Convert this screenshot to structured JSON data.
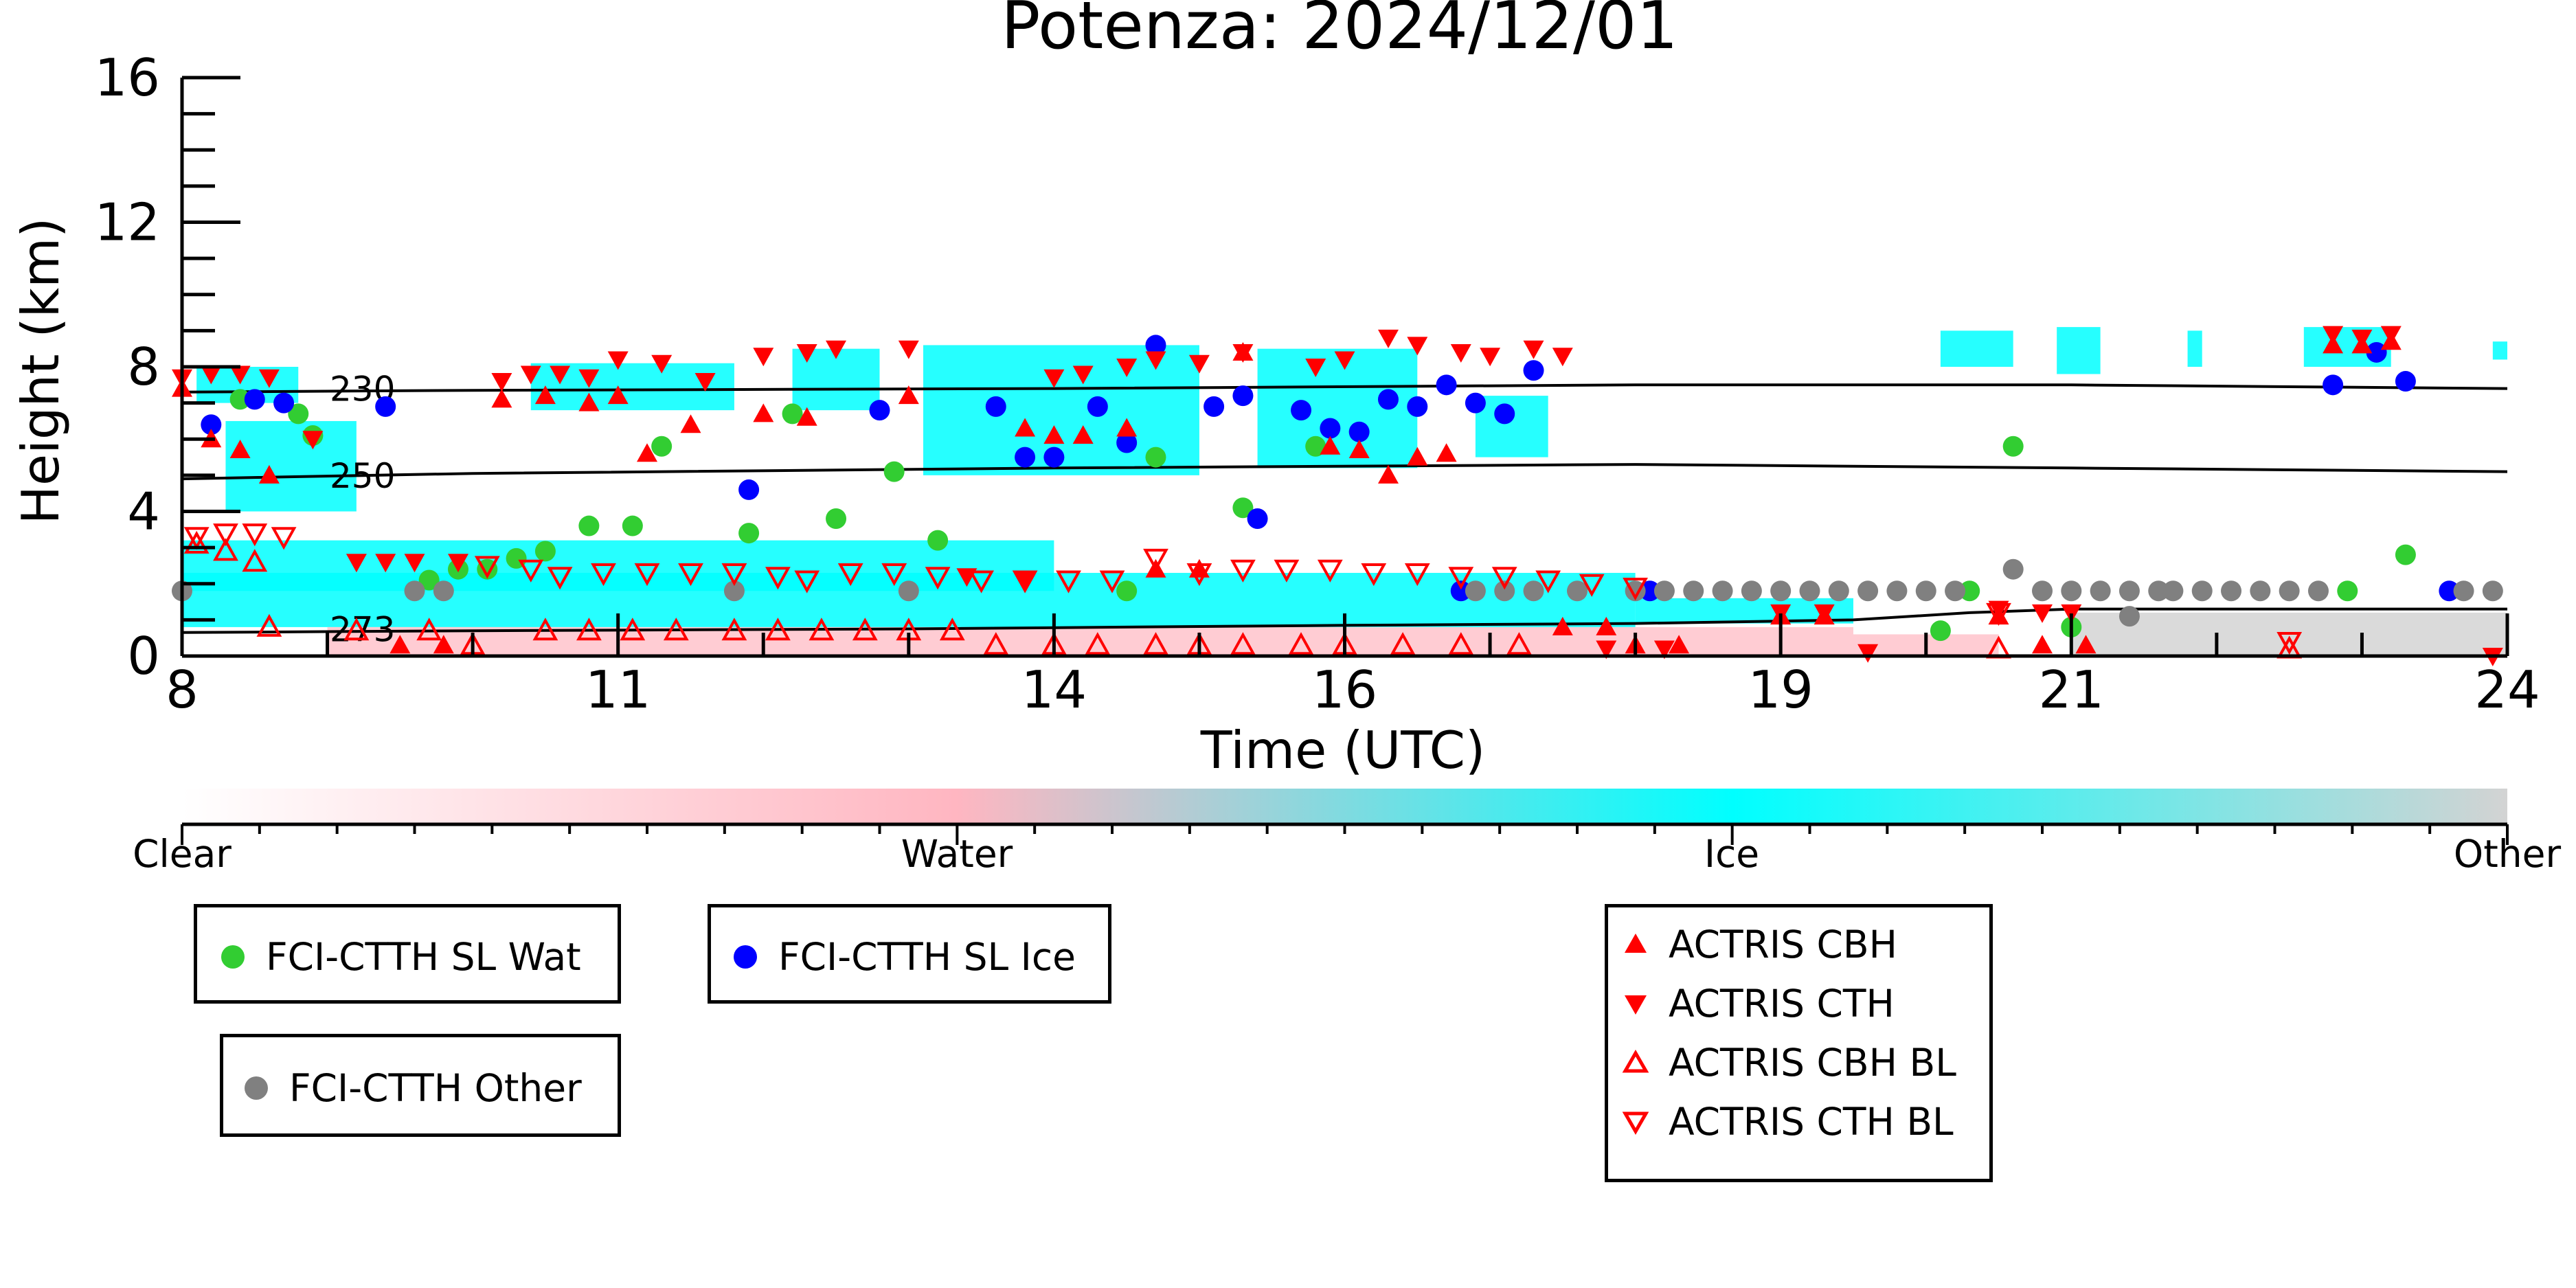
{
  "chart_data": {
    "type": "scatter",
    "title": "Potenza: 2024/12/01",
    "xlabel": "Time (UTC)",
    "ylabel": "Height (km)",
    "xlim": [
      8,
      24
    ],
    "ylim": [
      0,
      16
    ],
    "x_ticks": [
      8,
      11,
      14,
      16,
      19,
      21,
      24
    ],
    "y_ticks": [
      0,
      4,
      8,
      12,
      16
    ],
    "isotherms": [
      {
        "label": "230",
        "points": [
          [
            8,
            7.3
          ],
          [
            10,
            7.35
          ],
          [
            14,
            7.4
          ],
          [
            18,
            7.5
          ],
          [
            21,
            7.5
          ],
          [
            24,
            7.4
          ]
        ]
      },
      {
        "label": "250",
        "points": [
          [
            8,
            4.9
          ],
          [
            10,
            5.05
          ],
          [
            14,
            5.2
          ],
          [
            18,
            5.3
          ],
          [
            21,
            5.2
          ],
          [
            24,
            5.1
          ]
        ]
      },
      {
        "label": "273",
        "points": [
          [
            8,
            0.65
          ],
          [
            10,
            0.7
          ],
          [
            13,
            0.75
          ],
          [
            16,
            0.85
          ],
          [
            18,
            0.9
          ],
          [
            19.5,
            1.0
          ],
          [
            20.3,
            1.2
          ],
          [
            21,
            1.3
          ],
          [
            24,
            1.3
          ]
        ]
      }
    ],
    "background_classes": {
      "ice": [
        [
          8.1,
          8.8,
          7.0,
          8.0
        ],
        [
          8.3,
          9.2,
          4.0,
          6.5
        ],
        [
          10.4,
          11.8,
          6.8,
          8.1
        ],
        [
          12.2,
          12.8,
          6.8,
          8.5
        ],
        [
          13.1,
          15.0,
          5.0,
          8.6
        ],
        [
          15.4,
          16.5,
          5.2,
          8.5
        ],
        [
          16.9,
          17.4,
          5.5,
          7.2
        ],
        [
          20.1,
          20.6,
          8.0,
          9.0
        ],
        [
          20.9,
          21.2,
          7.8,
          9.1
        ],
        [
          21.8,
          21.9,
          8.0,
          9.0
        ],
        [
          22.6,
          23.2,
          8.0,
          9.1
        ],
        [
          23.9,
          24.0,
          8.2,
          8.7
        ],
        [
          8.0,
          14.0,
          1.8,
          3.2
        ],
        [
          8.0,
          18.0,
          0.8,
          2.3
        ],
        [
          18.0,
          19.5,
          0.9,
          1.6
        ]
      ],
      "water": [
        [
          9.0,
          19.5,
          0.0,
          0.8
        ],
        [
          19.5,
          20.5,
          0.0,
          0.6
        ]
      ],
      "other": [
        [
          21.0,
          24.0,
          0.0,
          1.2
        ]
      ]
    },
    "colorbar": {
      "labels": [
        "Clear",
        "Water",
        "Ice",
        "Other"
      ],
      "colors": [
        "#ffffff",
        "#ffb6c1",
        "#00ffff",
        "#d3d3d3"
      ]
    },
    "series": [
      {
        "name": "FCI-CTTH SL Wat",
        "marker": "circle",
        "color": "#32cd32",
        "points": [
          [
            8.4,
            7.1
          ],
          [
            8.8,
            6.7
          ],
          [
            8.9,
            6.1
          ],
          [
            9.7,
            2.1
          ],
          [
            9.9,
            2.4
          ],
          [
            10.1,
            2.4
          ],
          [
            10.3,
            2.7
          ],
          [
            10.5,
            2.9
          ],
          [
            10.8,
            3.6
          ],
          [
            11.1,
            3.6
          ],
          [
            11.3,
            5.8
          ],
          [
            11.9,
            3.4
          ],
          [
            12.2,
            6.7
          ],
          [
            12.5,
            3.8
          ],
          [
            12.9,
            5.1
          ],
          [
            13.2,
            3.2
          ],
          [
            14.5,
            1.8
          ],
          [
            14.7,
            5.5
          ],
          [
            15.3,
            4.1
          ],
          [
            15.8,
            5.8
          ],
          [
            20.1,
            0.7
          ],
          [
            20.3,
            1.8
          ],
          [
            20.6,
            5.8
          ],
          [
            21.0,
            0.8
          ],
          [
            22.9,
            1.8
          ],
          [
            23.3,
            2.8
          ]
        ]
      },
      {
        "name": "FCI-CTTH SL Ice",
        "marker": "circle",
        "color": "#0000ff",
        "points": [
          [
            8.2,
            6.4
          ],
          [
            8.5,
            7.1
          ],
          [
            8.7,
            7.0
          ],
          [
            9.4,
            6.9
          ],
          [
            11.9,
            4.6
          ],
          [
            12.8,
            6.8
          ],
          [
            13.6,
            6.9
          ],
          [
            13.8,
            5.5
          ],
          [
            14.0,
            5.5
          ],
          [
            14.3,
            6.9
          ],
          [
            14.5,
            5.9
          ],
          [
            14.7,
            8.6
          ],
          [
            15.1,
            6.9
          ],
          [
            15.3,
            7.2
          ],
          [
            15.4,
            3.8
          ],
          [
            15.7,
            6.8
          ],
          [
            15.9,
            6.3
          ],
          [
            16.1,
            6.2
          ],
          [
            16.3,
            7.1
          ],
          [
            16.5,
            6.9
          ],
          [
            16.7,
            7.5
          ],
          [
            16.9,
            7.0
          ],
          [
            17.1,
            6.7
          ],
          [
            17.3,
            7.9
          ],
          [
            16.8,
            1.8
          ],
          [
            18.1,
            1.8
          ],
          [
            22.8,
            7.5
          ],
          [
            23.1,
            8.4
          ],
          [
            23.3,
            7.6
          ],
          [
            23.6,
            1.8
          ]
        ]
      },
      {
        "name": "FCI-CTTH Other",
        "marker": "circle",
        "color": "#808080",
        "points": [
          [
            8.0,
            1.8
          ],
          [
            9.6,
            1.8
          ],
          [
            9.8,
            1.8
          ],
          [
            11.8,
            1.8
          ],
          [
            13.0,
            1.8
          ],
          [
            16.9,
            1.8
          ],
          [
            17.1,
            1.8
          ],
          [
            17.3,
            1.8
          ],
          [
            17.6,
            1.8
          ],
          [
            18.0,
            1.8
          ],
          [
            18.2,
            1.8
          ],
          [
            18.4,
            1.8
          ],
          [
            18.6,
            1.8
          ],
          [
            18.8,
            1.8
          ],
          [
            19.0,
            1.8
          ],
          [
            19.2,
            1.8
          ],
          [
            19.4,
            1.8
          ],
          [
            19.6,
            1.8
          ],
          [
            19.8,
            1.8
          ],
          [
            20.0,
            1.8
          ],
          [
            20.2,
            1.8
          ],
          [
            20.6,
            2.4
          ],
          [
            20.8,
            1.8
          ],
          [
            21.0,
            1.8
          ],
          [
            21.2,
            1.8
          ],
          [
            21.4,
            1.8
          ],
          [
            21.6,
            1.8
          ],
          [
            21.4,
            1.1
          ],
          [
            21.7,
            1.8
          ],
          [
            21.9,
            1.8
          ],
          [
            22.1,
            1.8
          ],
          [
            22.3,
            1.8
          ],
          [
            22.5,
            1.8
          ],
          [
            22.7,
            1.8
          ],
          [
            23.7,
            1.8
          ],
          [
            23.9,
            1.8
          ]
        ]
      },
      {
        "name": "ACTRIS CBH",
        "marker": "triangle-up",
        "color": "#ff0000",
        "fill": true,
        "points": [
          [
            8.0,
            7.4
          ],
          [
            8.2,
            6.0
          ],
          [
            8.4,
            5.7
          ],
          [
            8.6,
            5.0
          ],
          [
            9.5,
            0.3
          ],
          [
            9.8,
            0.3
          ],
          [
            10.2,
            7.1
          ],
          [
            10.5,
            7.2
          ],
          [
            10.8,
            7.0
          ],
          [
            11.0,
            7.2
          ],
          [
            11.2,
            5.6
          ],
          [
            11.5,
            6.4
          ],
          [
            12.0,
            6.7
          ],
          [
            12.3,
            6.6
          ],
          [
            13.0,
            7.2
          ],
          [
            13.8,
            6.3
          ],
          [
            14.0,
            6.1
          ],
          [
            14.2,
            6.1
          ],
          [
            14.5,
            6.3
          ],
          [
            14.7,
            2.4
          ],
          [
            15.0,
            2.4
          ],
          [
            15.3,
            8.4
          ],
          [
            15.9,
            5.8
          ],
          [
            16.1,
            5.7
          ],
          [
            16.3,
            5.0
          ],
          [
            16.5,
            5.5
          ],
          [
            16.7,
            5.6
          ],
          [
            18.0,
            0.3
          ],
          [
            18.3,
            0.3
          ],
          [
            19.0,
            1.1
          ],
          [
            19.3,
            1.1
          ],
          [
            20.5,
            1.1
          ],
          [
            20.8,
            0.3
          ],
          [
            21.1,
            0.3
          ],
          [
            22.8,
            8.6
          ],
          [
            23.0,
            8.6
          ],
          [
            23.2,
            8.7
          ],
          [
            17.5,
            0.8
          ],
          [
            17.8,
            0.8
          ]
        ]
      },
      {
        "name": "ACTRIS CTH",
        "marker": "triangle-down",
        "color": "#ff0000",
        "fill": true,
        "points": [
          [
            8.0,
            7.7
          ],
          [
            8.2,
            7.8
          ],
          [
            8.4,
            7.8
          ],
          [
            8.6,
            7.7
          ],
          [
            8.9,
            6.0
          ],
          [
            9.2,
            2.6
          ],
          [
            9.4,
            2.6
          ],
          [
            9.6,
            2.6
          ],
          [
            9.9,
            2.6
          ],
          [
            10.2,
            7.6
          ],
          [
            10.4,
            7.8
          ],
          [
            10.6,
            7.8
          ],
          [
            10.8,
            7.7
          ],
          [
            11.0,
            8.2
          ],
          [
            11.3,
            8.1
          ],
          [
            11.6,
            7.6
          ],
          [
            12.0,
            8.3
          ],
          [
            12.3,
            8.4
          ],
          [
            12.5,
            8.5
          ],
          [
            13.0,
            8.5
          ],
          [
            13.4,
            2.2
          ],
          [
            13.8,
            2.1
          ],
          [
            14.0,
            7.7
          ],
          [
            14.2,
            7.8
          ],
          [
            14.5,
            8.0
          ],
          [
            14.7,
            8.2
          ],
          [
            15.0,
            8.1
          ],
          [
            15.3,
            8.4
          ],
          [
            15.8,
            8.0
          ],
          [
            16.0,
            8.2
          ],
          [
            16.3,
            8.8
          ],
          [
            16.5,
            8.6
          ],
          [
            16.8,
            8.4
          ],
          [
            17.0,
            8.3
          ],
          [
            17.3,
            8.5
          ],
          [
            17.5,
            8.3
          ],
          [
            17.8,
            0.2
          ],
          [
            18.2,
            0.2
          ],
          [
            19.0,
            1.2
          ],
          [
            19.3,
            1.2
          ],
          [
            19.6,
            0.1
          ],
          [
            20.5,
            1.3
          ],
          [
            20.8,
            1.2
          ],
          [
            21.0,
            1.2
          ],
          [
            22.8,
            8.9
          ],
          [
            23.0,
            8.8
          ],
          [
            23.2,
            8.9
          ],
          [
            23.9,
            0.0
          ]
        ]
      },
      {
        "name": "ACTRIS CBH BL",
        "marker": "triangle-up",
        "color": "#ff0000",
        "fill": false,
        "points": [
          [
            8.1,
            3.1
          ],
          [
            8.3,
            2.9
          ],
          [
            8.5,
            2.6
          ],
          [
            8.6,
            0.8
          ],
          [
            9.2,
            0.7
          ],
          [
            9.7,
            0.7
          ],
          [
            10.0,
            0.3
          ],
          [
            10.5,
            0.7
          ],
          [
            10.8,
            0.7
          ],
          [
            11.1,
            0.7
          ],
          [
            11.4,
            0.7
          ],
          [
            11.8,
            0.7
          ],
          [
            12.1,
            0.7
          ],
          [
            12.4,
            0.7
          ],
          [
            12.7,
            0.7
          ],
          [
            13.0,
            0.7
          ],
          [
            13.3,
            0.7
          ],
          [
            13.6,
            0.3
          ],
          [
            14.0,
            0.3
          ],
          [
            14.3,
            0.3
          ],
          [
            14.7,
            0.3
          ],
          [
            15.0,
            0.3
          ],
          [
            15.3,
            0.3
          ],
          [
            15.7,
            0.3
          ],
          [
            16.0,
            0.3
          ],
          [
            16.4,
            0.3
          ],
          [
            16.8,
            0.3
          ],
          [
            17.2,
            0.3
          ],
          [
            20.5,
            0.2
          ],
          [
            22.5,
            0.2
          ]
        ]
      },
      {
        "name": "ACTRIS CTH BL",
        "marker": "triangle-down",
        "color": "#ff0000",
        "fill": false,
        "points": [
          [
            8.1,
            3.3
          ],
          [
            8.3,
            3.4
          ],
          [
            8.5,
            3.4
          ],
          [
            8.7,
            3.3
          ],
          [
            10.1,
            2.5
          ],
          [
            10.4,
            2.4
          ],
          [
            10.6,
            2.2
          ],
          [
            10.9,
            2.3
          ],
          [
            11.2,
            2.3
          ],
          [
            11.5,
            2.3
          ],
          [
            11.8,
            2.3
          ],
          [
            12.1,
            2.2
          ],
          [
            12.3,
            2.1
          ],
          [
            12.6,
            2.3
          ],
          [
            12.9,
            2.3
          ],
          [
            13.2,
            2.2
          ],
          [
            13.5,
            2.1
          ],
          [
            13.8,
            2.1
          ],
          [
            14.1,
            2.1
          ],
          [
            14.4,
            2.1
          ],
          [
            14.7,
            2.7
          ],
          [
            15.0,
            2.3
          ],
          [
            15.3,
            2.4
          ],
          [
            15.6,
            2.4
          ],
          [
            15.9,
            2.4
          ],
          [
            16.2,
            2.3
          ],
          [
            16.5,
            2.3
          ],
          [
            16.8,
            2.2
          ],
          [
            17.1,
            2.2
          ],
          [
            17.4,
            2.1
          ],
          [
            17.7,
            2.0
          ],
          [
            18.0,
            1.9
          ],
          [
            20.5,
            1.2
          ],
          [
            22.5,
            0.4
          ]
        ]
      }
    ]
  }
}
